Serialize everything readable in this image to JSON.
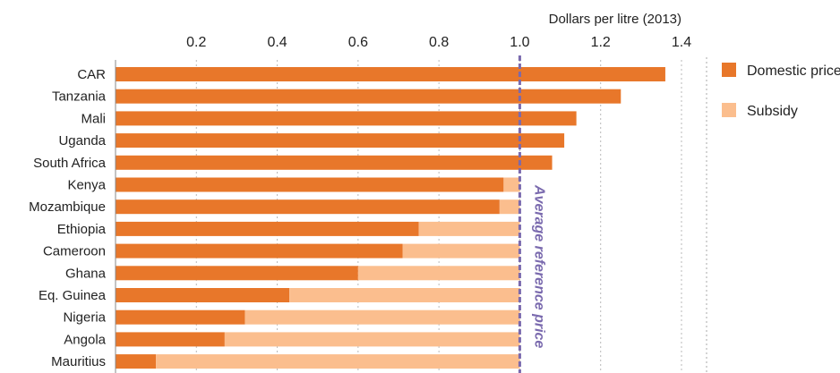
{
  "chart_data": {
    "type": "bar",
    "orientation": "horizontal",
    "stacked": true,
    "xlabel": "Dollars per litre (2013)",
    "x_ticks": [
      "0.2",
      "0.4",
      "0.6",
      "0.8",
      "1.0",
      "1.2",
      "1.4"
    ],
    "xlim": [
      0,
      1.4
    ],
    "categories": [
      "CAR",
      "Tanzania",
      "Mali",
      "Uganda",
      "South Africa",
      "Kenya",
      "Mozambique",
      "Ethiopia",
      "Cameroon",
      "Ghana",
      "Eq. Guinea",
      "Nigeria",
      "Angola",
      "Mauritius"
    ],
    "series": [
      {
        "name": "Domestic price",
        "color": "#e8772a",
        "values": [
          1.36,
          1.25,
          1.14,
          1.11,
          1.08,
          0.96,
          0.95,
          0.75,
          0.71,
          0.6,
          0.43,
          0.32,
          0.27,
          0.1
        ]
      },
      {
        "name": "Subsidy",
        "color": "#fbbe8e",
        "values": [
          0,
          0,
          0,
          0,
          0,
          0.04,
          0.05,
          0.25,
          0.29,
          0.4,
          0.57,
          0.68,
          0.73,
          0.9
        ]
      }
    ],
    "reference_line": {
      "value": 1.0,
      "label": "Average reference price",
      "color": "#7a6aae"
    },
    "grid": true,
    "legend_position": "right"
  }
}
